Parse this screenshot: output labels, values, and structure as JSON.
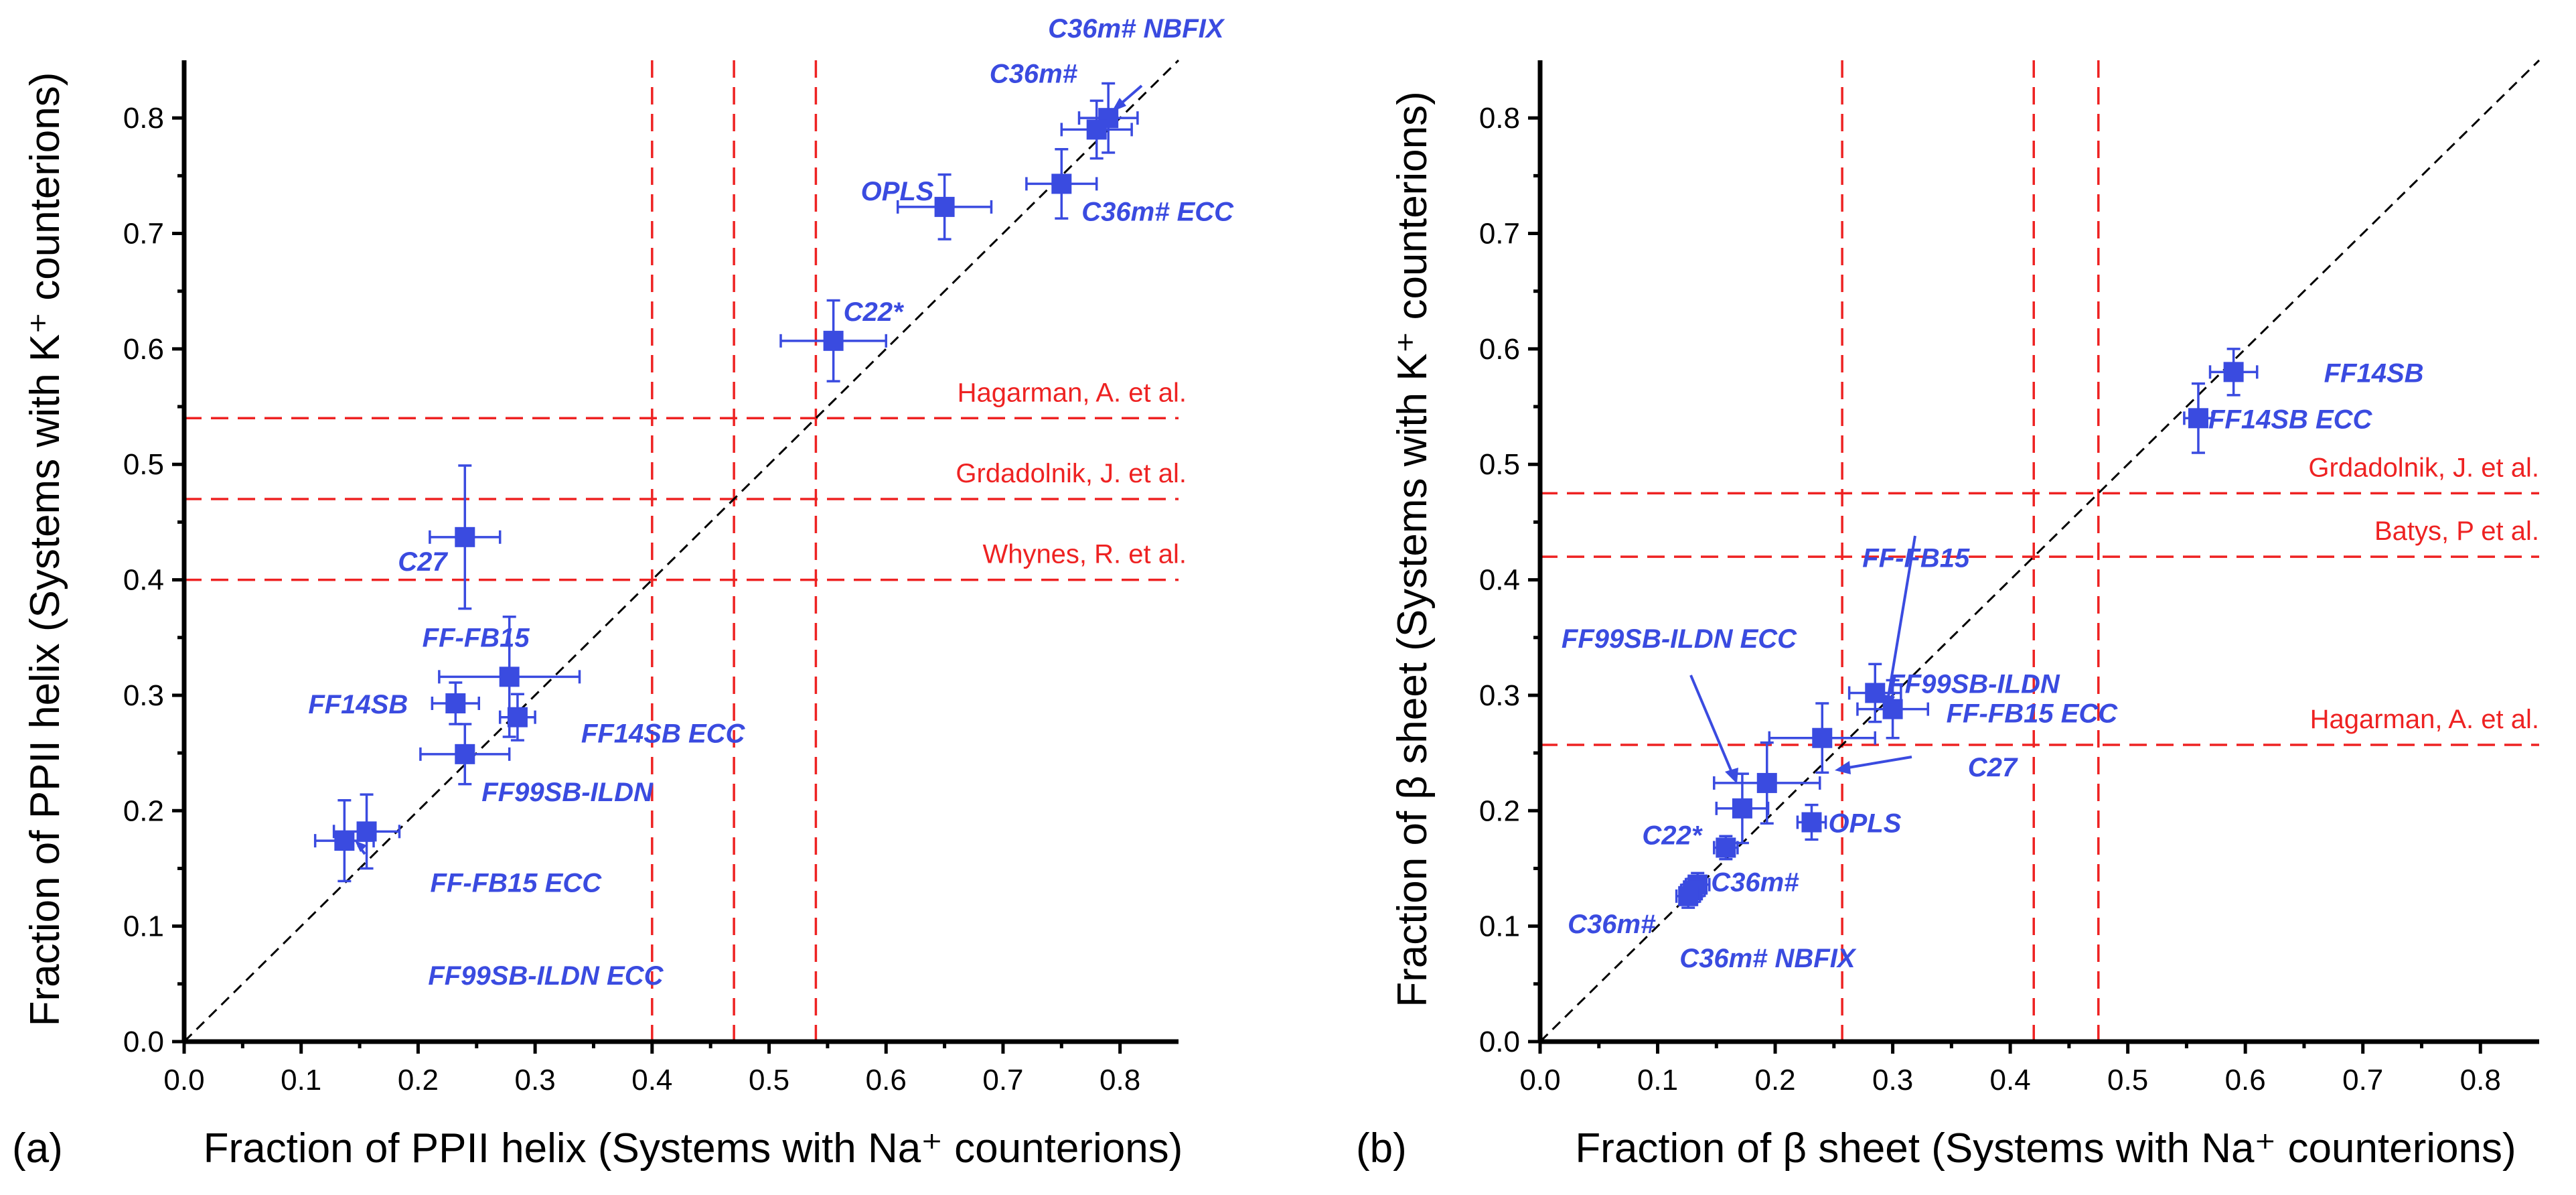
{
  "chart_data": [
    {
      "type": "scatter",
      "panel_label": "(a)",
      "xlabel": "Fraction of PPII helix (Systems with Na⁺ counterions)",
      "ylabel": "Fraction of PPII helix (Systems with K⁺ counterions)",
      "xlim": [
        0.0,
        0.85
      ],
      "ylim": [
        0.0,
        0.85
      ],
      "xticks": [
        "0.0",
        "0.1",
        "0.2",
        "0.3",
        "0.4",
        "0.5",
        "0.6",
        "0.7",
        "0.8"
      ],
      "yticks": [
        "0.0",
        "0.1",
        "0.2",
        "0.3",
        "0.4",
        "0.5",
        "0.6",
        "0.7",
        "0.8"
      ],
      "diagonal": true,
      "reference_lines": [
        {
          "label": "Hagarman, A. et al.",
          "value": 0.54
        },
        {
          "label": "Grdadolnik, J. et al.",
          "value": 0.47
        },
        {
          "label": "Whynes, R. et al.",
          "value": 0.4
        }
      ],
      "points": [
        {
          "label": "C36m# NBFIX",
          "x": 0.79,
          "y": 0.8,
          "xerr": 0.025,
          "yerr": 0.03
        },
        {
          "label": "C36m#",
          "x": 0.78,
          "y": 0.79,
          "xerr": 0.03,
          "yerr": 0.025
        },
        {
          "label": "C36m# ECC",
          "x": 0.75,
          "y": 0.743,
          "xerr": 0.03,
          "yerr": 0.03
        },
        {
          "label": "OPLS",
          "x": 0.65,
          "y": 0.723,
          "xerr": 0.04,
          "yerr": 0.028
        },
        {
          "label": "C22*",
          "x": 0.555,
          "y": 0.607,
          "xerr": 0.045,
          "yerr": 0.035
        },
        {
          "label": "C27",
          "x": 0.24,
          "y": 0.437,
          "xerr": 0.03,
          "yerr": 0.062
        },
        {
          "label": "FF-FB15",
          "x": 0.278,
          "y": 0.316,
          "xerr": 0.06,
          "yerr": 0.052
        },
        {
          "label": "FF14SB",
          "x": 0.232,
          "y": 0.293,
          "xerr": 0.02,
          "yerr": 0.018
        },
        {
          "label": "FF14SB  ECC",
          "x": 0.285,
          "y": 0.281,
          "xerr": 0.015,
          "yerr": 0.02
        },
        {
          "label": "FF99SB-ILDN",
          "x": 0.24,
          "y": 0.249,
          "xerr": 0.038,
          "yerr": 0.026
        },
        {
          "label": "FF-FB15 ECC",
          "x": 0.156,
          "y": 0.182,
          "xerr": 0.028,
          "yerr": 0.032
        },
        {
          "label": "FF99SB-ILDN ECC",
          "x": 0.137,
          "y": 0.174,
          "xerr": 0.025,
          "yerr": 0.035
        }
      ]
    },
    {
      "type": "scatter",
      "panel_label": "(b)",
      "xlabel": "Fraction of β sheet (Systems with Na⁺ counterions)",
      "ylabel": "Fraction of β sheet (Systems with K⁺ counterions)",
      "xlim": [
        0.0,
        0.85
      ],
      "ylim": [
        0.0,
        0.85
      ],
      "xticks": [
        "0.0",
        "0.1",
        "0.2",
        "0.3",
        "0.4",
        "0.5",
        "0.6",
        "0.7",
        "0.8"
      ],
      "yticks": [
        "0.0",
        "0.1",
        "0.2",
        "0.3",
        "0.4",
        "0.5",
        "0.6",
        "0.7",
        "0.8"
      ],
      "diagonal": true,
      "reference_lines": [
        {
          "label": "Grdadolnik, J. et al.",
          "value": 0.475
        },
        {
          "label": "Batys, P et al.",
          "value": 0.42
        },
        {
          "label": "Hagarman, A. et al.",
          "value": 0.257
        }
      ],
      "points": [
        {
          "label": "FF14SB",
          "x": 0.59,
          "y": 0.58,
          "xerr": 0.02,
          "yerr": 0.02
        },
        {
          "label": "FF14SB ECC",
          "x": 0.56,
          "y": 0.54,
          "xerr": 0.012,
          "yerr": 0.03
        },
        {
          "label": "FF99SB-ILDN",
          "x": 0.285,
          "y": 0.302,
          "xerr": 0.022,
          "yerr": 0.025
        },
        {
          "label": "FF-FB15 ECC",
          "x": 0.3,
          "y": 0.288,
          "xerr": 0.03,
          "yerr": 0.025
        },
        {
          "label": "FF-FB15",
          "x": 0.24,
          "y": 0.263,
          "xerr": 0.045,
          "yerr": 0.03
        },
        {
          "label": "C27",
          "x": 0.193,
          "y": 0.224,
          "xerr": 0.045,
          "yerr": 0.035
        },
        {
          "label": "FF99SB-ILDN ECC",
          "x": 0.172,
          "y": 0.202,
          "xerr": 0.022,
          "yerr": 0.03
        },
        {
          "label": "OPLS",
          "x": 0.231,
          "y": 0.19,
          "xerr": 0.012,
          "yerr": 0.015
        },
        {
          "label": "C22*",
          "x": 0.158,
          "y": 0.168,
          "xerr": 0.01,
          "yerr": 0.01
        },
        {
          "label": "C36m#",
          "x": 0.134,
          "y": 0.136,
          "xerr": 0.01,
          "yerr": 0.01
        },
        {
          "label": "C36m# NBFIX",
          "x": 0.13,
          "y": 0.131,
          "xerr": 0.01,
          "yerr": 0.01
        },
        {
          "label": "C36m#",
          "x": 0.126,
          "y": 0.126,
          "xerr": 0.01,
          "yerr": 0.01
        }
      ]
    }
  ],
  "colors": {
    "points": "#3a4be0",
    "reference": "#ee2222",
    "axes": "#000000"
  }
}
